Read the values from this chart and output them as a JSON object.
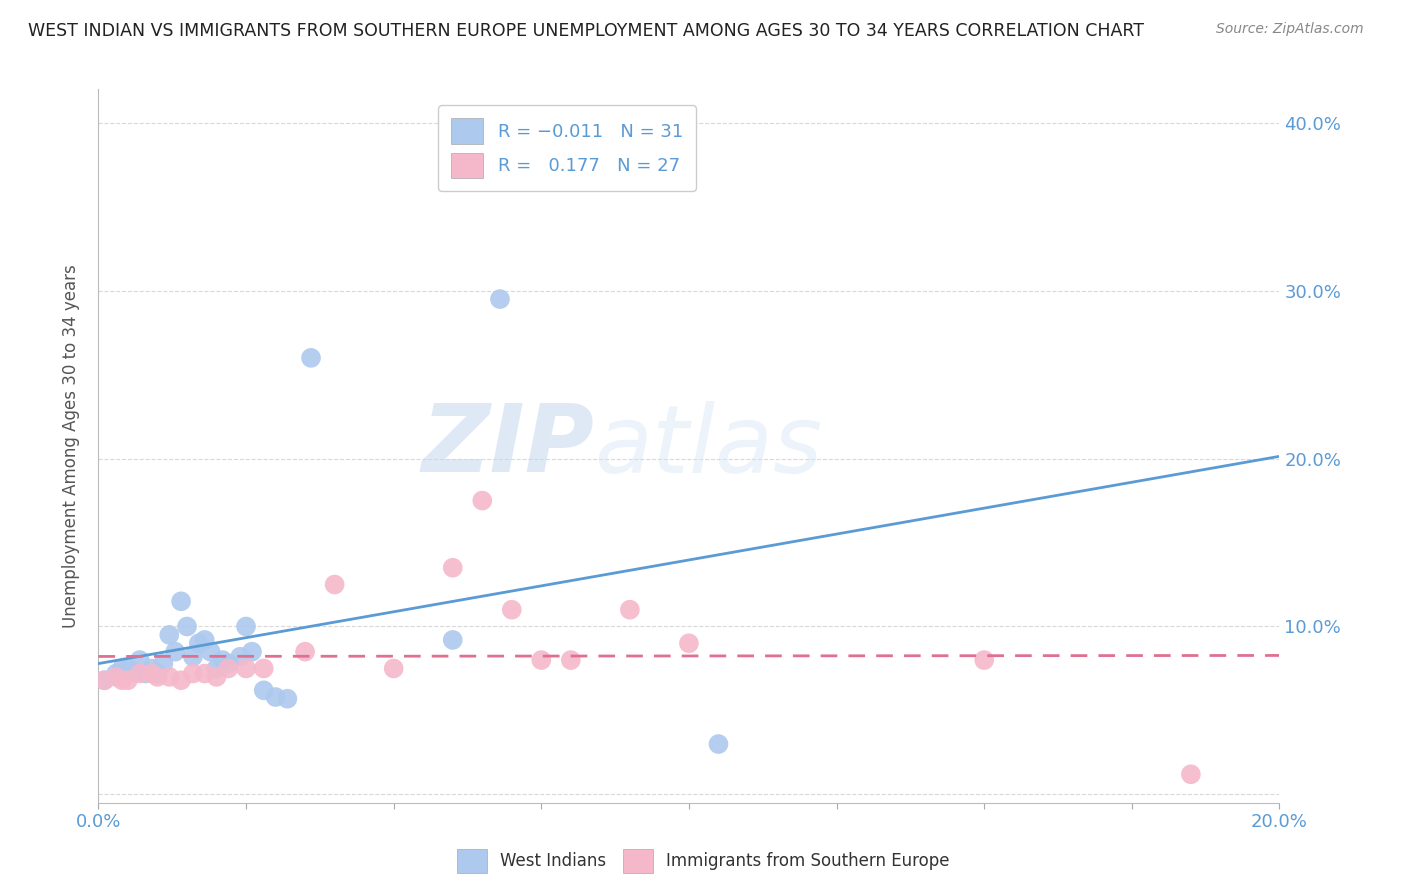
{
  "title": "WEST INDIAN VS IMMIGRANTS FROM SOUTHERN EUROPE UNEMPLOYMENT AMONG AGES 30 TO 34 YEARS CORRELATION CHART",
  "source": "Source: ZipAtlas.com",
  "ylabel": "Unemployment Among Ages 30 to 34 years",
  "yticks": [
    0.0,
    0.1,
    0.2,
    0.3,
    0.4
  ],
  "ytick_labels": [
    "",
    "10.0%",
    "20.0%",
    "30.0%",
    "40.0%"
  ],
  "xlim": [
    0.0,
    0.2
  ],
  "ylim": [
    -0.005,
    0.42
  ],
  "west_indians_color": "#adc9ee",
  "immigrants_color": "#f5b8cb",
  "trendline_blue": "#5b9bd5",
  "trendline_pink": "#e07090",
  "watermark_zip": "ZIP",
  "watermark_atlas": "atlas",
  "west_indians_x": [
    0.001,
    0.003,
    0.004,
    0.005,
    0.006,
    0.007,
    0.008,
    0.009,
    0.01,
    0.011,
    0.012,
    0.013,
    0.014,
    0.015,
    0.016,
    0.017,
    0.018,
    0.019,
    0.02,
    0.021,
    0.022,
    0.024,
    0.025,
    0.026,
    0.028,
    0.03,
    0.032,
    0.036,
    0.06,
    0.068,
    0.105
  ],
  "west_indians_y": [
    0.068,
    0.072,
    0.075,
    0.075,
    0.073,
    0.08,
    0.072,
    0.075,
    0.072,
    0.078,
    0.095,
    0.085,
    0.115,
    0.1,
    0.082,
    0.09,
    0.092,
    0.085,
    0.075,
    0.08,
    0.078,
    0.082,
    0.1,
    0.085,
    0.062,
    0.058,
    0.057,
    0.26,
    0.092,
    0.295,
    0.03
  ],
  "immigrants_x": [
    0.001,
    0.003,
    0.004,
    0.005,
    0.007,
    0.009,
    0.01,
    0.012,
    0.014,
    0.016,
    0.018,
    0.02,
    0.022,
    0.025,
    0.028,
    0.035,
    0.04,
    0.05,
    0.06,
    0.065,
    0.07,
    0.075,
    0.08,
    0.09,
    0.1,
    0.15,
    0.185
  ],
  "immigrants_y": [
    0.068,
    0.07,
    0.068,
    0.068,
    0.072,
    0.072,
    0.07,
    0.07,
    0.068,
    0.072,
    0.072,
    0.07,
    0.075,
    0.075,
    0.075,
    0.085,
    0.125,
    0.075,
    0.135,
    0.175,
    0.11,
    0.08,
    0.08,
    0.11,
    0.09,
    0.08,
    0.012
  ],
  "background_color": "#ffffff",
  "grid_color": "#d9d9d9"
}
